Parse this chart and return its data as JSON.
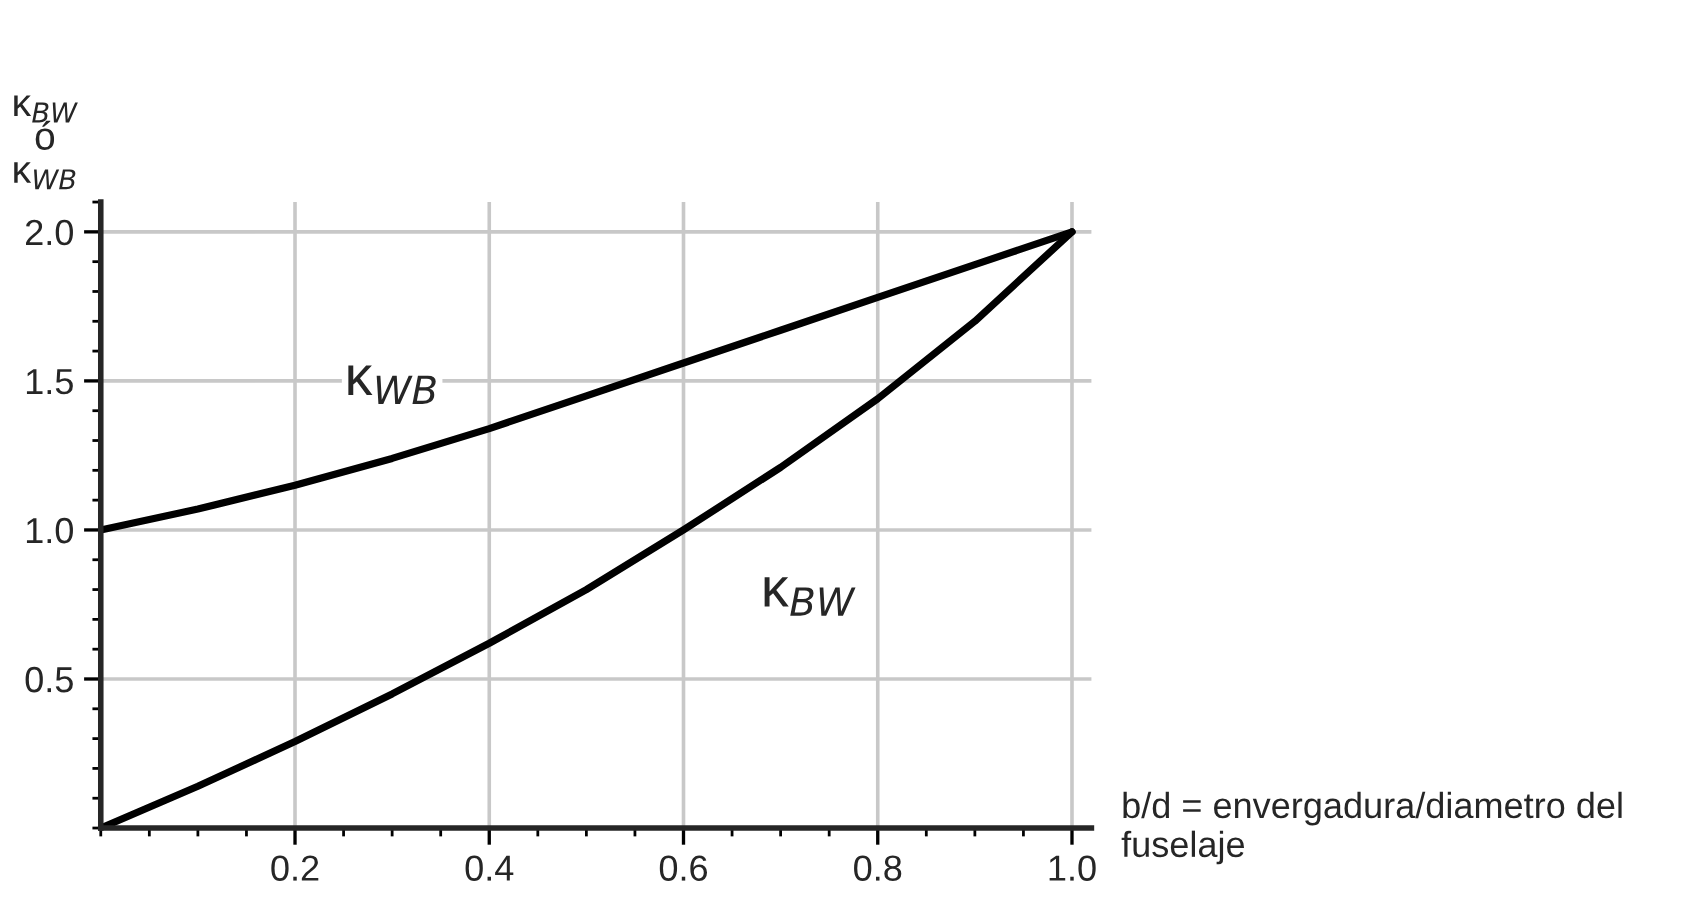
{
  "chart_data": {
    "type": "line",
    "xlabel": "b/d = envergadura/diametro del fuselaje",
    "ylabel": "κ$_{BW}$\nó\nκ$_{WB}$",
    "x": [
      0,
      0.1,
      0.2,
      0.3,
      0.4,
      0.5,
      0.6,
      0.7,
      0.8,
      0.9,
      1.0
    ],
    "series": [
      {
        "name": "κ$_{WB}$",
        "color": "#000000",
        "values": [
          1.0,
          1.07,
          1.15,
          1.24,
          1.34,
          1.45,
          1.56,
          1.67,
          1.78,
          1.89,
          2.0
        ]
      },
      {
        "name": "κ$_{BW}$",
        "color": "#000000",
        "values": [
          0,
          0.14,
          0.29,
          0.45,
          0.62,
          0.8,
          1.0,
          1.21,
          1.44,
          1.7,
          2.0
        ]
      }
    ],
    "xlim": [
      0,
      1.02
    ],
    "ylim": [
      0,
      2.1
    ],
    "xticks": [
      0.2,
      0.4,
      0.6,
      0.8,
      {
        "value": 1,
        "label": "1.0"
      }
    ],
    "yticks": [
      0.5,
      {
        "value": 1,
        "label": "1.0"
      },
      1.5,
      {
        "value": 2,
        "label": "2.0"
      }
    ],
    "grid": true,
    "marker": "none",
    "line_style": "solid",
    "legend": false
  }
}
